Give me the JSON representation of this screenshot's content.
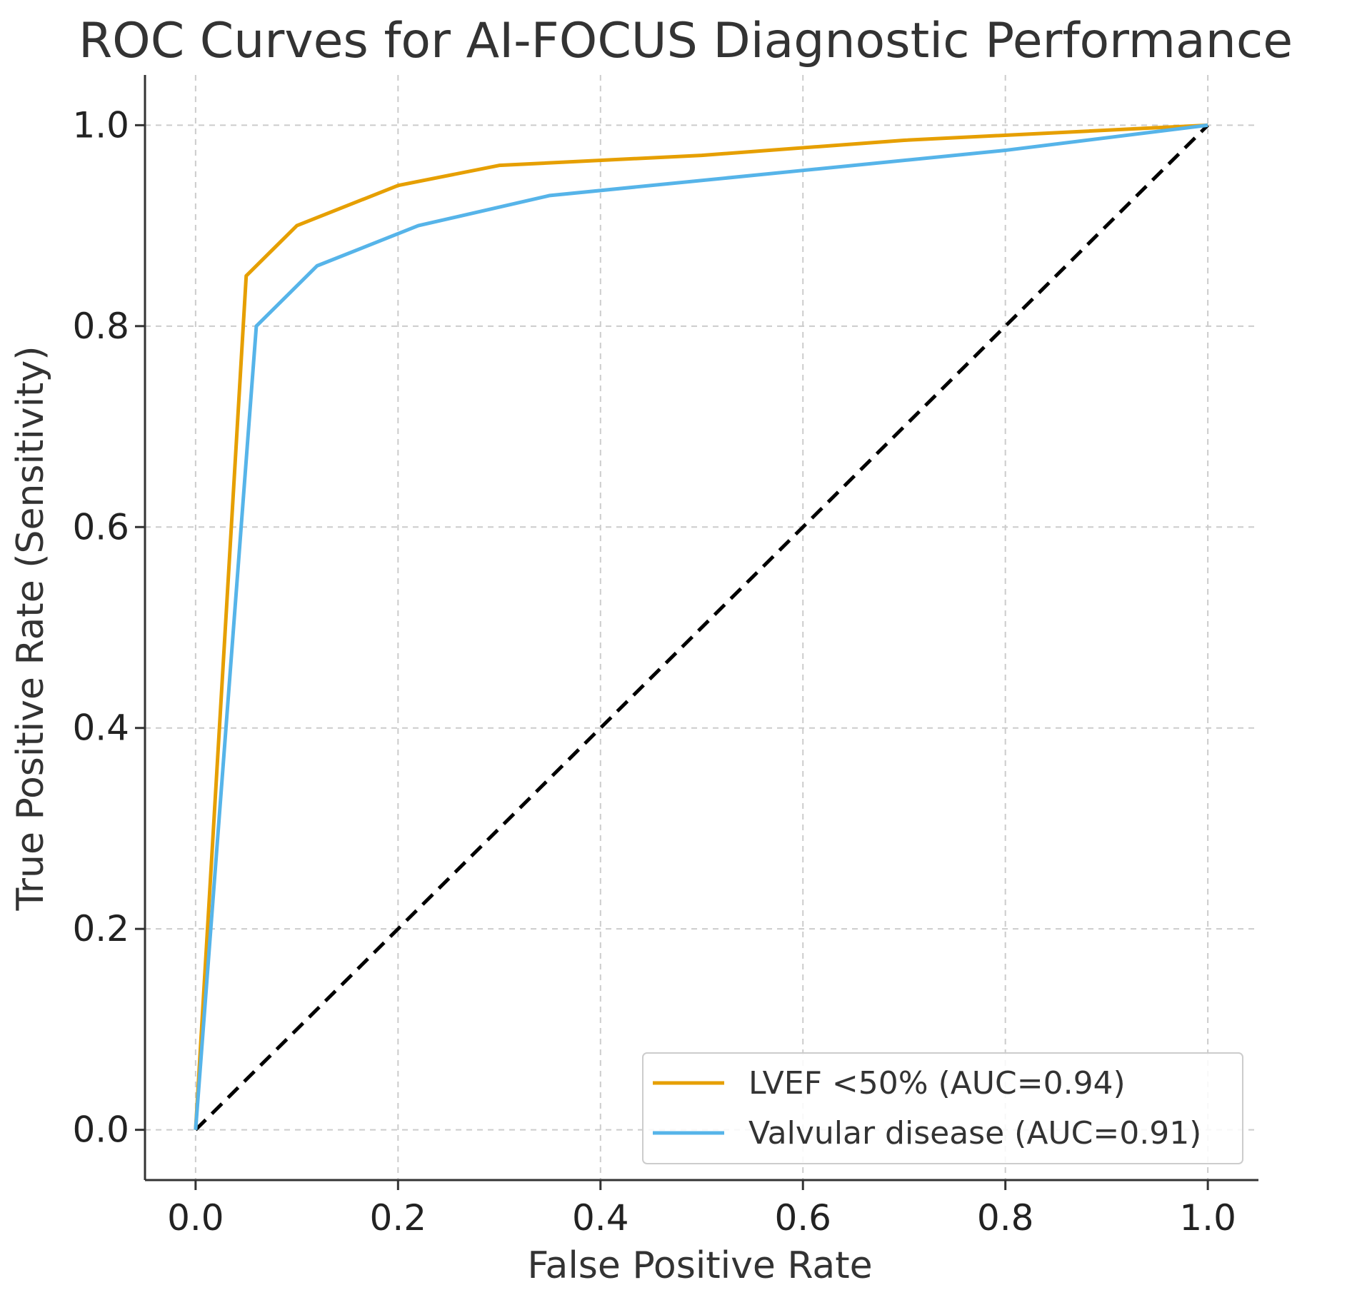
{
  "chart_data": {
    "type": "line",
    "title": "ROC Curves for AI-FOCUS Diagnostic Performance",
    "xlabel": "False Positive Rate",
    "ylabel": "True Positive Rate (Sensitivity)",
    "xlim": [
      -0.05,
      1.05
    ],
    "ylim": [
      -0.05,
      1.05
    ],
    "xticks": [
      0.0,
      0.2,
      0.4,
      0.6,
      0.8,
      1.0
    ],
    "xtick_labels": [
      "0.0",
      "0.2",
      "0.4",
      "0.6",
      "0.8",
      "1.0"
    ],
    "yticks": [
      0.0,
      0.2,
      0.4,
      0.6,
      0.8,
      1.0
    ],
    "ytick_labels": [
      "0.0",
      "0.2",
      "0.4",
      "0.6",
      "0.8",
      "1.0"
    ],
    "grid": true,
    "legend_position": "lower-right",
    "series": [
      {
        "name": "LVEF <50% (AUC=0.94)",
        "color": "#E69F00",
        "style": "solid",
        "x": [
          0.0,
          0.05,
          0.1,
          0.2,
          0.3,
          0.5,
          0.7,
          1.0
        ],
        "y": [
          0.0,
          0.85,
          0.9,
          0.94,
          0.96,
          0.97,
          0.985,
          1.0
        ]
      },
      {
        "name": "Valvular disease (AUC=0.91)",
        "color": "#56B4E9",
        "style": "solid",
        "x": [
          0.0,
          0.06,
          0.12,
          0.22,
          0.35,
          0.6,
          0.8,
          1.0
        ],
        "y": [
          0.0,
          0.8,
          0.86,
          0.9,
          0.93,
          0.955,
          0.975,
          1.0
        ]
      }
    ],
    "reference_line": {
      "color": "#000000",
      "style": "dashed",
      "x": [
        0.0,
        1.0
      ],
      "y": [
        0.0,
        1.0
      ]
    }
  }
}
